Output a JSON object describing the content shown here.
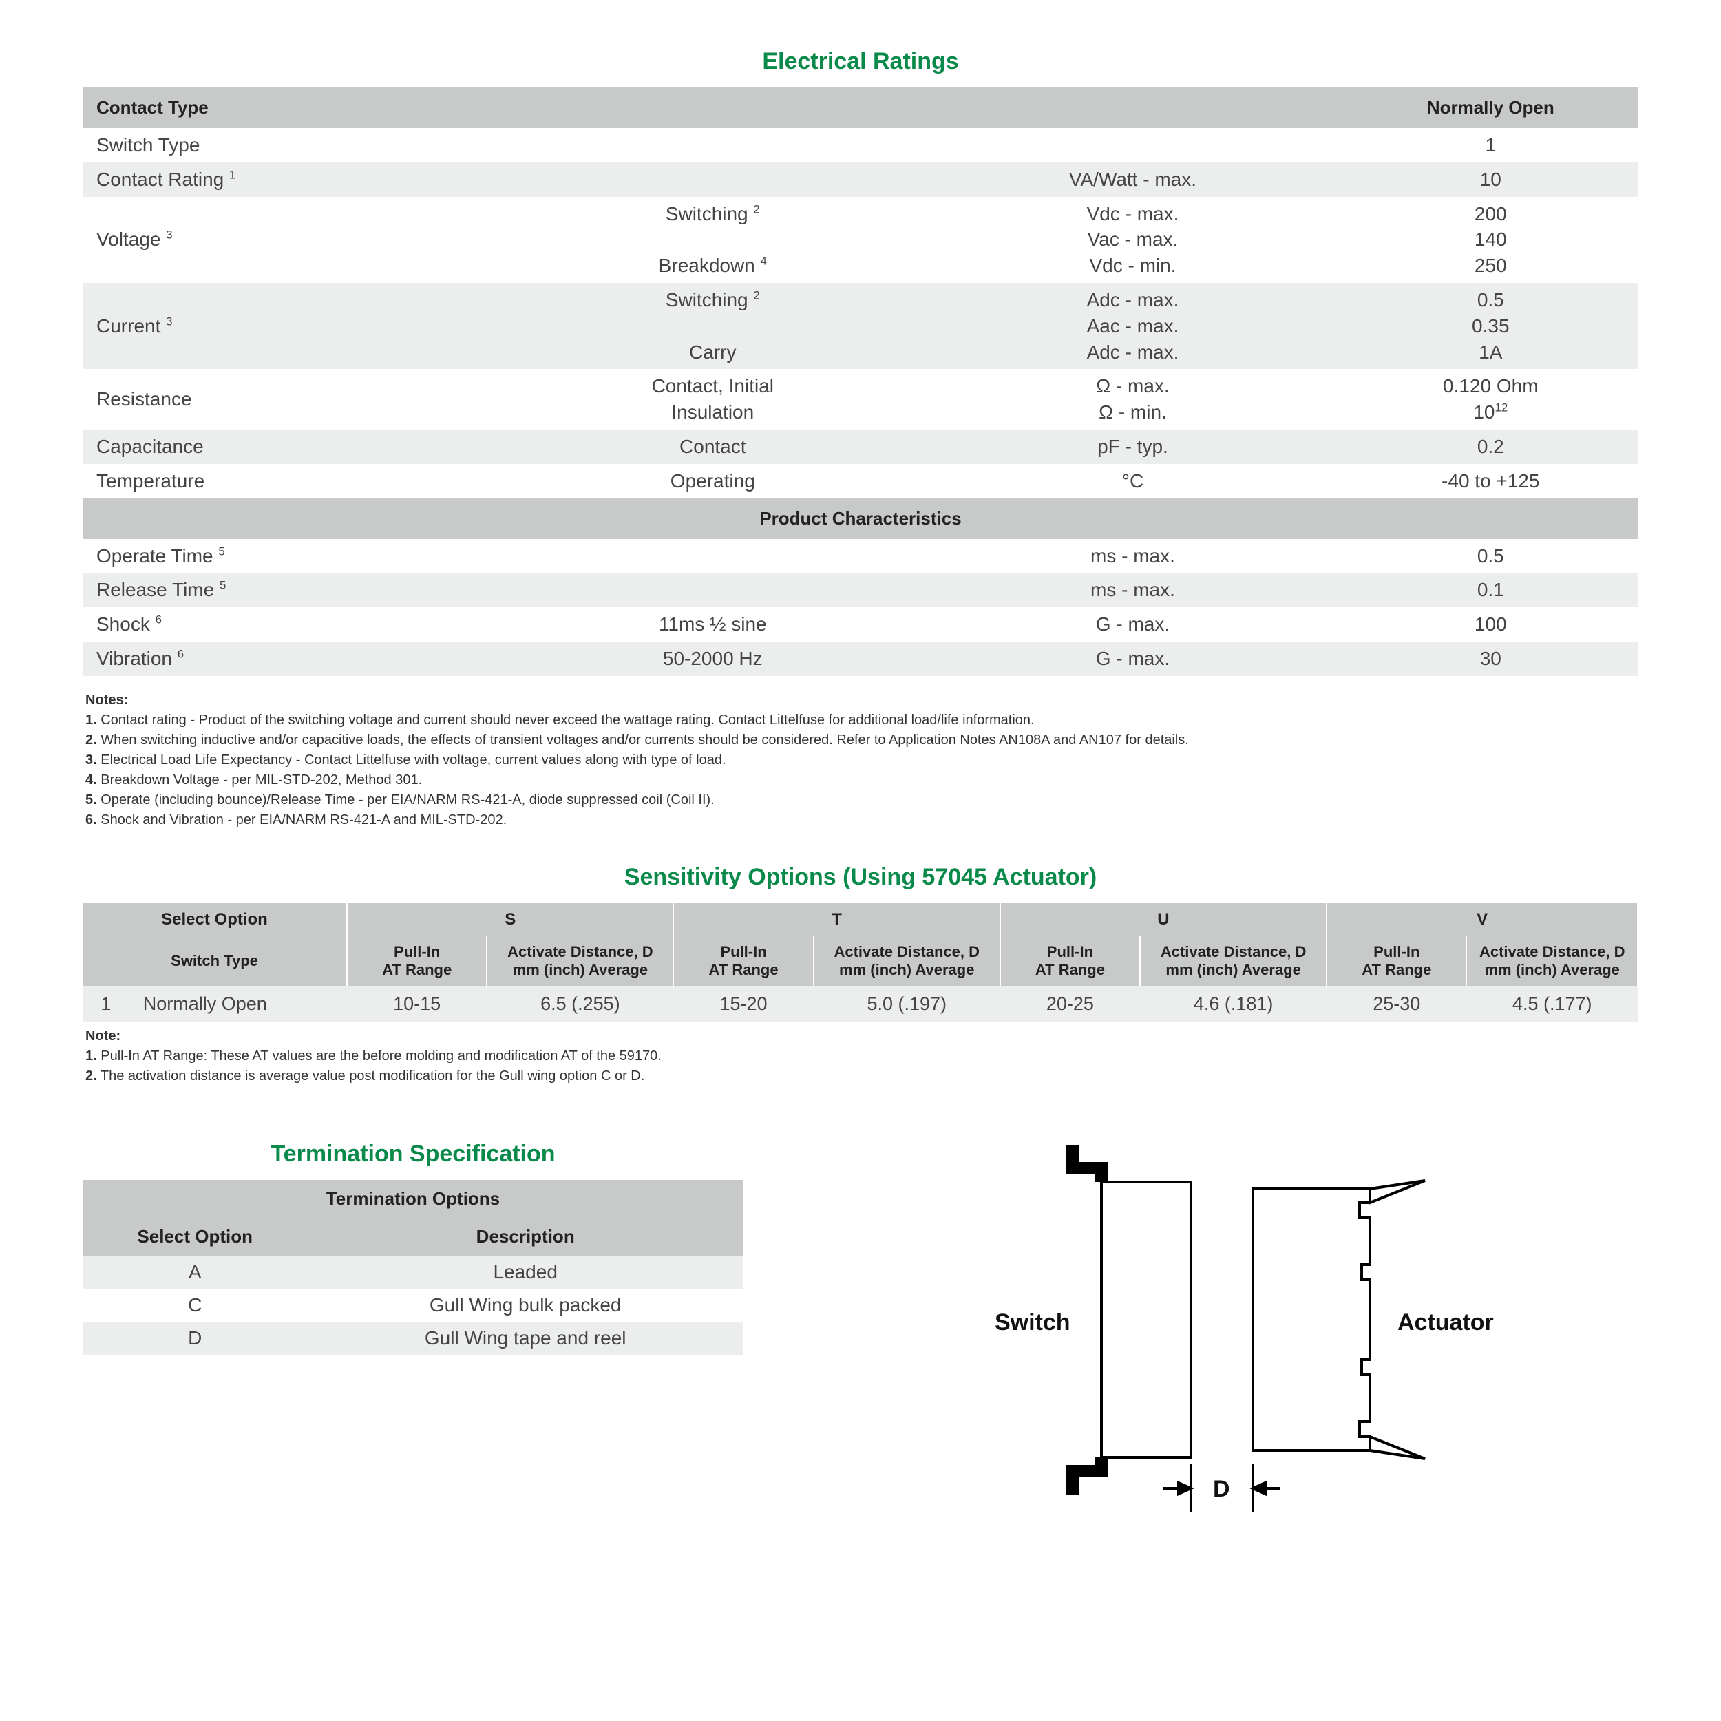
{
  "colors": {
    "accent": "#0a8a4a",
    "header_bg": "#c8cac9",
    "row_odd": "#eceeed",
    "row_even": "#ffffff",
    "text": "#222222",
    "body_text": "#444444",
    "background": "#ffffff"
  },
  "typography": {
    "title_fontsize_pt": 34,
    "header_fontsize_pt": 26,
    "cell_fontsize_pt": 28,
    "notes_fontsize_pt": 20,
    "font_family": "Arial"
  },
  "elec": {
    "title": "Electrical Ratings",
    "headers": {
      "contact_type": "Contact Type",
      "value_col": "Normally Open"
    },
    "rows": [
      {
        "label": "Switch Type",
        "sup": "",
        "mid": "",
        "unit": "",
        "val": "1"
      },
      {
        "label": "Contact Rating",
        "sup": "1",
        "mid": "",
        "unit": "VA/Watt - max.",
        "val": "10"
      },
      {
        "label": "Voltage",
        "sup": "3",
        "mid": "Switching <sup>2</sup><br><br>Breakdown <sup>4</sup>",
        "unit": "Vdc - max.<br>Vac - max.<br>Vdc - min.",
        "val": "200<br>140<br>250"
      },
      {
        "label": "Current",
        "sup": "3",
        "mid": "Switching <sup>2</sup><br><br>Carry",
        "unit": "Adc - max.<br>Aac - max.<br>Adc - max.",
        "val": "0.5<br>0.35<br>1A"
      },
      {
        "label": "Resistance",
        "sup": "",
        "mid": "Contact, Initial<br>Insulation",
        "unit": "Ω - max.<br>Ω - min.",
        "val": "0.120 Ohm<br>10<sup>12</sup>"
      },
      {
        "label": "Capacitance",
        "sup": "",
        "mid": "Contact",
        "unit": "pF - typ.",
        "val": "0.2"
      },
      {
        "label": "Temperature",
        "sup": "",
        "mid": "Operating",
        "unit": "°C",
        "val": "-40 to +125"
      }
    ],
    "sub_title": "Product Characteristics",
    "sub_rows": [
      {
        "label": "Operate Time",
        "sup": "5",
        "mid": "",
        "unit": "ms - max.",
        "val": "0.5"
      },
      {
        "label": "Release Time",
        "sup": "5",
        "mid": "",
        "unit": "ms - max.",
        "val": "0.1"
      },
      {
        "label": "Shock",
        "sup": "6",
        "mid": "11ms ½ sine",
        "unit": "G - max.",
        "val": "100"
      },
      {
        "label": "Vibration",
        "sup": "6",
        "mid": "50-2000 Hz",
        "unit": "G - max.",
        "val": "30"
      }
    ],
    "notes": {
      "title": "Notes:",
      "items": [
        "Contact rating - Product of the switching voltage and current should never exceed the wattage rating. Contact Littelfuse for additional load/life information.",
        "When switching inductive and/or capacitive loads, the effects of transient voltages and/or currents should be considered. Refer to Application Notes AN108A and AN107 for details.",
        "Electrical Load Life Expectancy - Contact Littelfuse with voltage, current values along with type of load.",
        "Breakdown Voltage - per MIL-STD-202, Method 301.",
        "Operate (including bounce)/Release Time - per EIA/NARM RS-421-A, diode suppressed coil (Coil II).",
        "Shock and Vibration - per EIA/NARM RS-421-A and MIL-STD-202."
      ]
    }
  },
  "sens": {
    "title": "Sensitivity Options (Using 57045  Actuator)",
    "top": {
      "select": "Select Option",
      "opts": [
        "S",
        "T",
        "U",
        "V"
      ]
    },
    "sub": {
      "switch_type": "Switch Type",
      "pullin": "Pull-In AT Range",
      "dist": "Activate Distance, D mm (inch) Average"
    },
    "row": {
      "idx": "1",
      "type": "Normally Open",
      "cells": [
        "10-15",
        "6.5 (.255)",
        "15-20",
        "5.0 (.197)",
        "20-25",
        "4.6 (.181)",
        "25-30",
        "4.5 (.177)"
      ]
    },
    "notes": {
      "title": "Note:",
      "items": [
        "Pull-In AT Range: These AT values are the before molding and modification AT of the 59170.",
        "The activation distance is average value post modification for the Gull wing option C or D."
      ]
    }
  },
  "term": {
    "title": "Termination Specification",
    "header": "Termination Options",
    "cols": {
      "select": "Select Option",
      "desc": "Description"
    },
    "rows": [
      {
        "opt": "A",
        "desc": "Leaded"
      },
      {
        "opt": "C",
        "desc": "Gull Wing bulk packed"
      },
      {
        "opt": "D",
        "desc": "Gull Wing tape and reel"
      }
    ]
  },
  "diagram": {
    "switch_label": "Switch",
    "actuator_label": "Actuator",
    "d_label": "D",
    "stroke": "#000000",
    "stroke_width": 4
  }
}
